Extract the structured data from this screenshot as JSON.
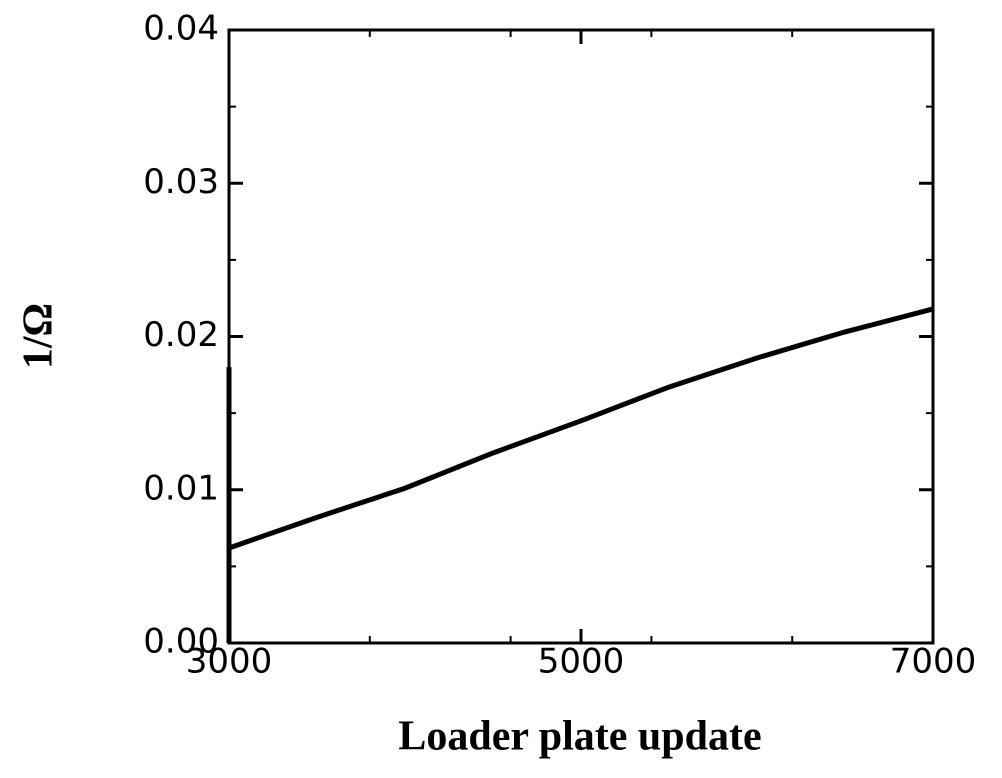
{
  "chart_data": {
    "type": "line",
    "x_label": "Loader plate update",
    "y_label": "1/Ω",
    "x": [
      3000,
      3000,
      3000,
      3500,
      4000,
      4500,
      5000,
      5500,
      6000,
      6500,
      7000
    ],
    "series": [
      {
        "color": "#000000",
        "values": [
          0.018,
          0,
          0.0062,
          0.0082,
          0.0101,
          0.0124,
          0.0145,
          0.0167,
          0.0186,
          0.0203,
          0.0218
        ]
      }
    ],
    "xlim": [
      3000,
      7000
    ],
    "ylim": [
      0,
      0.04
    ],
    "xticks": [
      3000,
      5000,
      7000
    ],
    "yticks": [
      {
        "value": 0,
        "label": "0.00"
      },
      0.01,
      0.02,
      0.03,
      0.04
    ],
    "xminorticks": [
      3800,
      4600,
      5400,
      6200
    ],
    "yminorticks": [
      0.005,
      0.015,
      0.025,
      0.035
    ]
  }
}
